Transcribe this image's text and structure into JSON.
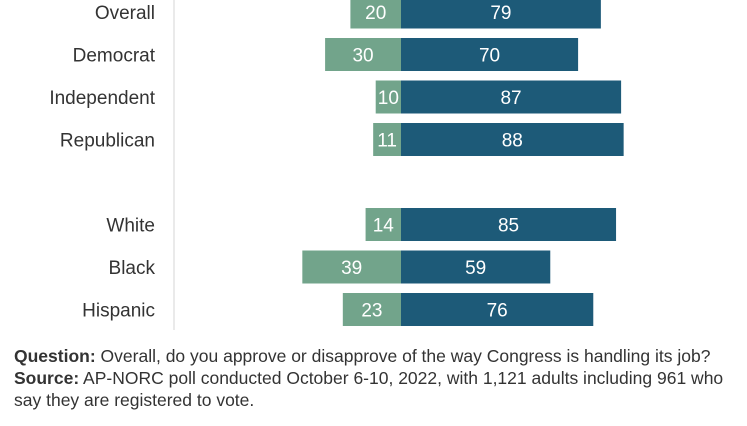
{
  "chart_data": {
    "type": "bar",
    "orientation": "horizontal-diverging",
    "categories": [
      "Overall",
      "Democrat",
      "Independent",
      "Republican",
      "White",
      "Black",
      "Hispanic"
    ],
    "groups": [
      [
        "Overall",
        "Democrat",
        "Independent",
        "Republican"
      ],
      [
        "White",
        "Black",
        "Hispanic"
      ]
    ],
    "series": [
      {
        "values": [
          20,
          30,
          10,
          11,
          14,
          39,
          23
        ],
        "color": "#72a48b",
        "side": "left"
      },
      {
        "values": [
          79,
          70,
          87,
          88,
          85,
          59,
          76
        ],
        "color": "#1d5a78",
        "side": "right"
      }
    ],
    "title": "",
    "xlabel": "",
    "ylabel": "",
    "grid": false,
    "legend": "none"
  },
  "notes": {
    "question_label": "Question:",
    "question_text": " Overall, do you approve or disapprove of the way Congress is handling its job?",
    "source_label": "Source:",
    "source_text": " AP-NORC poll conducted October 6-10, 2022, with 1,121 adults including 961 who say they are registered to vote."
  }
}
